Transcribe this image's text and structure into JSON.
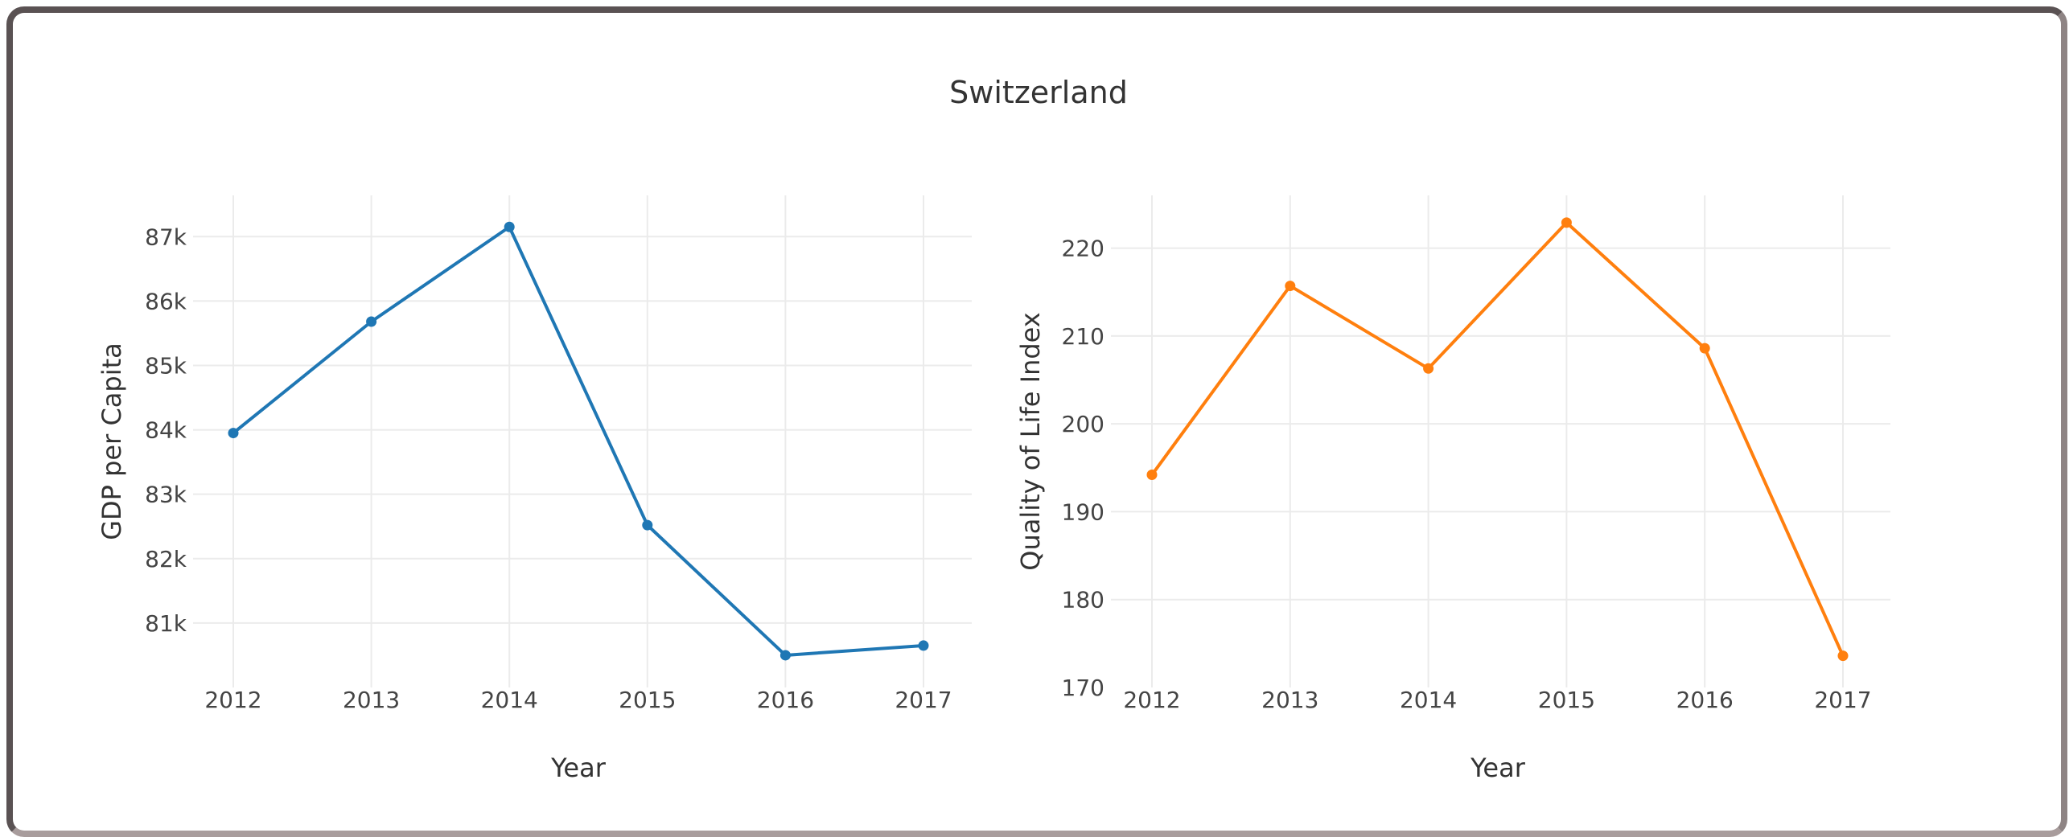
{
  "page": {
    "title": "Switzerland"
  },
  "chart_data": [
    {
      "type": "line",
      "x": [
        "2012",
        "2013",
        "2014",
        "2015",
        "2016",
        "2017"
      ],
      "series": [
        {
          "values": [
            83950,
            85680,
            87150,
            82520,
            80500,
            80650
          ],
          "color": "#1f77b4"
        }
      ],
      "xlabel": "Year",
      "ylabel": "GDP per Capita",
      "ylim": [
        80000,
        87640
      ],
      "yticks": [
        81000,
        82000,
        83000,
        84000,
        85000,
        86000,
        87000
      ],
      "ytick_labels": [
        "81k",
        "82k",
        "83k",
        "84k",
        "85k",
        "86k",
        "87k"
      ],
      "grid": true,
      "markers": true
    },
    {
      "type": "line",
      "x": [
        "2012",
        "2013",
        "2014",
        "2015",
        "2016",
        "2017"
      ],
      "series": [
        {
          "values": [
            194.2,
            215.7,
            206.3,
            222.9,
            208.6,
            173.6
          ],
          "color": "#ff7f0e"
        }
      ],
      "xlabel": "Year",
      "ylabel": "Quality of Life Index",
      "ylim": [
        170,
        226
      ],
      "yticks": [
        170,
        180,
        190,
        200,
        210,
        220
      ],
      "ytick_labels": [
        "170",
        "180",
        "190",
        "200",
        "210",
        "220"
      ],
      "grid": true,
      "markers": true
    }
  ]
}
